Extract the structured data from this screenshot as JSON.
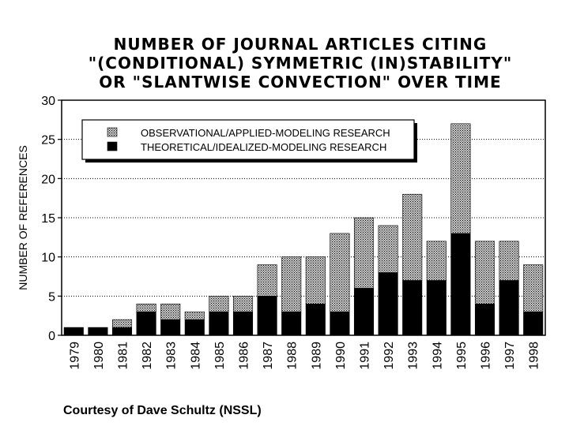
{
  "chart_data": {
    "type": "bar",
    "stacked": true,
    "title_lines": [
      "NUMBER OF JOURNAL ARTICLES CITING",
      "\"(CONDITIONAL) SYMMETRIC (IN)STABILITY\"",
      "OR \"SLANTWISE CONVECTION\" OVER TIME"
    ],
    "ylabel": "NUMBER OF REFERENCES",
    "xlabel": "",
    "ylim": [
      0,
      30
    ],
    "yticks": [
      0,
      5,
      10,
      15,
      20,
      25,
      30
    ],
    "grid": "horizontal dotted",
    "legend_placement": "top-left",
    "categories": [
      "1979",
      "1980",
      "1981",
      "1982",
      "1983",
      "1984",
      "1985",
      "1986",
      "1987",
      "1988",
      "1989",
      "1990",
      "1991",
      "1992",
      "1993",
      "1994",
      "1995",
      "1996",
      "1997",
      "1998"
    ],
    "series": [
      {
        "name": "THEORETICAL/IDEALIZED-MODELING RESEARCH",
        "color": "#000000",
        "values": [
          1,
          1,
          1,
          3,
          2,
          2,
          3,
          3,
          5,
          3,
          4,
          3,
          6,
          8,
          7,
          7,
          13,
          4,
          7,
          3
        ]
      },
      {
        "name": "OBSERVATIONAL/APPLIED-MODELING RESEARCH",
        "color": "#808080",
        "values": [
          0,
          0,
          1,
          1,
          2,
          1,
          2,
          2,
          4,
          7,
          6,
          10,
          9,
          6,
          11,
          5,
          14,
          8,
          5,
          6
        ]
      }
    ]
  },
  "credit": "Courtesy of Dave Schultz (NSSL)"
}
